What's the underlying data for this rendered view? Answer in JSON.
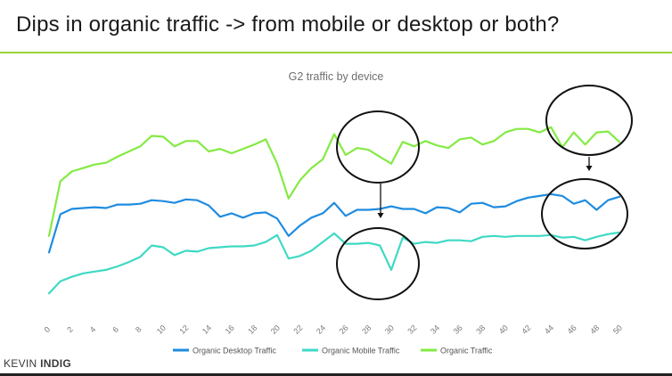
{
  "slide": {
    "title": "Dips in organic traffic -> from mobile or desktop or both?",
    "brand_first": "KEVIN",
    "brand_second": "INDIG"
  },
  "chart_data": {
    "type": "line",
    "title": "G2 traffic by device",
    "xlabel": "",
    "ylabel": "",
    "x": [
      0,
      1,
      2,
      3,
      4,
      5,
      6,
      7,
      8,
      9,
      10,
      11,
      12,
      13,
      14,
      15,
      16,
      17,
      18,
      19,
      20,
      21,
      22,
      23,
      24,
      25,
      26,
      27,
      28,
      29,
      30,
      31,
      32,
      33,
      34,
      35,
      36,
      37,
      38,
      39,
      40,
      41,
      42,
      43,
      44,
      45,
      46,
      47,
      48,
      49,
      50
    ],
    "x_tick_labels": [
      "0",
      "2",
      "4",
      "6",
      "8",
      "10",
      "12",
      "14",
      "16",
      "18",
      "20",
      "22",
      "24",
      "26",
      "28",
      "30",
      "32",
      "34",
      "36",
      "38",
      "40",
      "42",
      "44",
      "46",
      "48",
      "50"
    ],
    "ylim": [
      0,
      215
    ],
    "grid": false,
    "legend_position": "bottom",
    "series": [
      {
        "name": "Organic Desktop Traffic",
        "color": "#1f8ce0",
        "values": [
          58,
          102,
          108,
          109,
          110,
          109,
          113,
          113,
          114,
          118,
          117,
          115,
          119,
          118,
          112,
          99,
          103,
          98,
          103,
          104,
          97,
          77,
          89,
          98,
          103,
          115,
          100,
          107,
          107,
          108,
          111,
          108,
          108,
          103,
          110,
          109,
          104,
          114,
          115,
          110,
          111,
          117,
          121,
          123,
          125,
          123,
          114,
          118,
          107,
          118,
          122
        ]
      },
      {
        "name": "Organic Mobile Traffic",
        "color": "#3fd9c4",
        "values": [
          11,
          25,
          30,
          34,
          36,
          38,
          42,
          47,
          53,
          66,
          64,
          55,
          60,
          59,
          63,
          64,
          65,
          65,
          66,
          70,
          78,
          51,
          54,
          60,
          70,
          80,
          68,
          68,
          69,
          66,
          38,
          75,
          68,
          70,
          69,
          72,
          72,
          71,
          76,
          77,
          76,
          77,
          77,
          77,
          78,
          75,
          76,
          72,
          76,
          79,
          81
        ]
      },
      {
        "name": "Organic Traffic",
        "color": "#84ea43",
        "values": [
          77,
          140,
          151,
          155,
          159,
          161,
          168,
          174,
          180,
          192,
          191,
          180,
          186,
          186,
          174,
          177,
          172,
          177,
          182,
          188,
          160,
          120,
          141,
          155,
          165,
          194,
          170,
          178,
          176,
          168,
          160,
          185,
          180,
          186,
          181,
          178,
          188,
          190,
          182,
          186,
          196,
          200,
          200,
          196,
          202,
          179,
          196,
          182,
          196,
          197,
          185
        ]
      }
    ],
    "annotations": [
      "ellipse-dip-1-green",
      "ellipse-dip-1-mobile",
      "ellipse-dip-2-green",
      "ellipse-dip-2-desktop"
    ]
  }
}
